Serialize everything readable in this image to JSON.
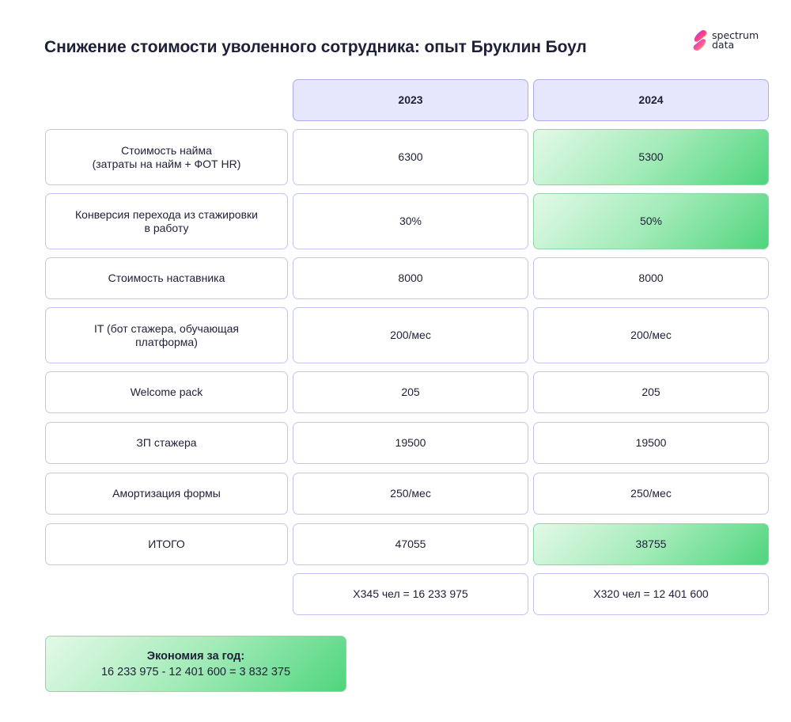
{
  "title": "Снижение стоимости уволенного сотрудника: опыт Бруклин Боул",
  "logo": {
    "line1": "spectrum",
    "line2": "data",
    "icon": "spectrum-data-logo-icon"
  },
  "table": {
    "headers": [
      "2023",
      "2024"
    ],
    "rows": [
      {
        "label_line1": "Стоимость найма",
        "label_line2": "(затраты на найм + ФОТ HR)",
        "v2023": "6300",
        "v2024": "5300"
      },
      {
        "label_line1": "Конверсия перехода из стажировки",
        "label_line2": "в работу",
        "v2023": "30%",
        "v2024": "50%"
      },
      {
        "label_line1": "Стоимость наставника",
        "label_line2": "",
        "v2023": "8000",
        "v2024": "8000"
      },
      {
        "label_line1": "IT (бот стажера, обучающая",
        "label_line2": "платформа)",
        "v2023": "200/мес",
        "v2024": "200/мес"
      },
      {
        "label_line1": "Welcome pack",
        "label_line2": "",
        "v2023": "205",
        "v2024": "205"
      },
      {
        "label_line1": "ЗП стажера",
        "label_line2": "",
        "v2023": "19500",
        "v2024": "19500"
      },
      {
        "label_line1": "Амортизация формы",
        "label_line2": "",
        "v2023": "250/мес",
        "v2024": "250/мес"
      },
      {
        "label_line1": "ИТОГО",
        "label_line2": "",
        "v2023": "47055",
        "v2024": "38755"
      }
    ],
    "totals": {
      "v2023": "Х345 чел = 16 233 975",
      "v2024": "Х320 чел = 12 401 600"
    }
  },
  "savings": {
    "title": "Экономия за год:",
    "formula": "16 233 975 - 12 401 600 = 3 832 375"
  },
  "colors": {
    "header_bg": "#e6e7fd",
    "border": "#c2c5f2",
    "highlight_green": "#4fd57d",
    "text": "#1d2038"
  }
}
